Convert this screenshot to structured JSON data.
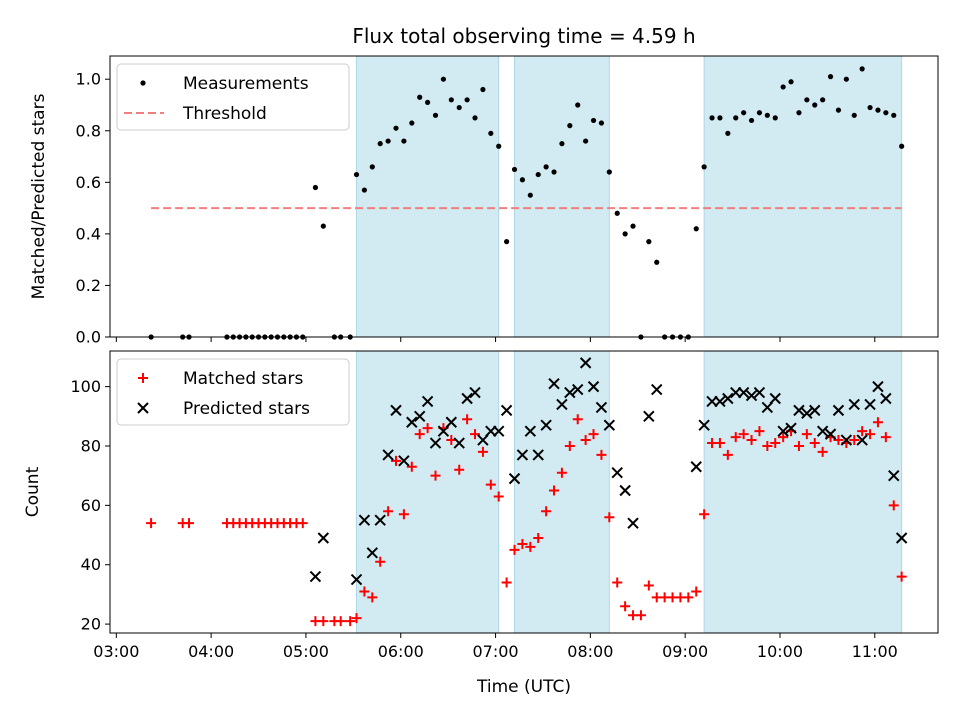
{
  "chart_data": [
    {
      "type": "scatter",
      "title": "Flux total observing time = 4.59 h",
      "xlabel": "",
      "ylabel": "Matched/Predicted stars",
      "ylim": [
        0,
        1.09
      ],
      "xlim": [
        "02:56",
        "11:40"
      ],
      "y_ticks": [
        "0.0",
        "0.2",
        "0.4",
        "0.6",
        "0.8",
        "1.0"
      ],
      "legend_placement": "top-left",
      "grid": false,
      "shaded_intervals": [
        [
          "05:32",
          "07:02"
        ],
        [
          "07:12",
          "08:12"
        ],
        [
          "09:12",
          "11:17"
        ]
      ],
      "shade_color": "#add8e6",
      "series": [
        {
          "name": "Measurements",
          "marker": "dot",
          "color": "#000000",
          "points": [
            [
              "03:22",
              0.0
            ],
            [
              "03:42",
              0.0
            ],
            [
              "03:46",
              0.0
            ],
            [
              "04:10",
              0.0
            ],
            [
              "04:14",
              0.0
            ],
            [
              "04:18",
              0.0
            ],
            [
              "04:22",
              0.0
            ],
            [
              "04:26",
              0.0
            ],
            [
              "04:30",
              0.0
            ],
            [
              "04:34",
              0.0
            ],
            [
              "04:38",
              0.0
            ],
            [
              "04:42",
              0.0
            ],
            [
              "04:46",
              0.0
            ],
            [
              "04:50",
              0.0
            ],
            [
              "04:54",
              0.0
            ],
            [
              "04:58",
              0.0
            ],
            [
              "05:06",
              0.58
            ],
            [
              "05:11",
              0.43
            ],
            [
              "05:18",
              0.0
            ],
            [
              "05:22",
              0.0
            ],
            [
              "05:28",
              0.0
            ],
            [
              "05:32",
              0.63
            ],
            [
              "05:37",
              0.57
            ],
            [
              "05:42",
              0.66
            ],
            [
              "05:47",
              0.75
            ],
            [
              "05:52",
              0.76
            ],
            [
              "05:57",
              0.81
            ],
            [
              "06:02",
              0.76
            ],
            [
              "06:07",
              0.83
            ],
            [
              "06:12",
              0.93
            ],
            [
              "06:17",
              0.91
            ],
            [
              "06:22",
              0.86
            ],
            [
              "06:27",
              1.0
            ],
            [
              "06:32",
              0.92
            ],
            [
              "06:37",
              0.89
            ],
            [
              "06:42",
              0.92
            ],
            [
              "06:47",
              0.85
            ],
            [
              "06:52",
              0.96
            ],
            [
              "06:57",
              0.79
            ],
            [
              "07:02",
              0.74
            ],
            [
              "07:07",
              0.37
            ],
            [
              "07:12",
              0.65
            ],
            [
              "07:17",
              0.61
            ],
            [
              "07:22",
              0.55
            ],
            [
              "07:27",
              0.63
            ],
            [
              "07:32",
              0.66
            ],
            [
              "07:37",
              0.64
            ],
            [
              "07:42",
              0.75
            ],
            [
              "07:47",
              0.82
            ],
            [
              "07:52",
              0.9
            ],
            [
              "07:57",
              0.76
            ],
            [
              "08:02",
              0.84
            ],
            [
              "08:07",
              0.83
            ],
            [
              "08:12",
              0.64
            ],
            [
              "08:17",
              0.48
            ],
            [
              "08:22",
              0.4
            ],
            [
              "08:27",
              0.43
            ],
            [
              "08:32",
              0.0
            ],
            [
              "08:37",
              0.37
            ],
            [
              "08:42",
              0.29
            ],
            [
              "08:47",
              0.0
            ],
            [
              "08:52",
              0.0
            ],
            [
              "08:57",
              0.0
            ],
            [
              "09:02",
              0.0
            ],
            [
              "09:07",
              0.42
            ],
            [
              "09:12",
              0.66
            ],
            [
              "09:17",
              0.85
            ],
            [
              "09:22",
              0.85
            ],
            [
              "09:27",
              0.79
            ],
            [
              "09:32",
              0.85
            ],
            [
              "09:37",
              0.87
            ],
            [
              "09:42",
              0.84
            ],
            [
              "09:47",
              0.87
            ],
            [
              "09:52",
              0.86
            ],
            [
              "09:57",
              0.85
            ],
            [
              "10:02",
              0.97
            ],
            [
              "10:07",
              0.99
            ],
            [
              "10:12",
              0.87
            ],
            [
              "10:17",
              0.92
            ],
            [
              "10:22",
              0.9
            ],
            [
              "10:27",
              0.92
            ],
            [
              "10:32",
              1.01
            ],
            [
              "10:37",
              0.88
            ],
            [
              "10:42",
              1.0
            ],
            [
              "10:47",
              0.86
            ],
            [
              "10:52",
              1.04
            ],
            [
              "10:57",
              0.89
            ],
            [
              "11:02",
              0.88
            ],
            [
              "11:07",
              0.87
            ],
            [
              "11:12",
              0.86
            ],
            [
              "11:17",
              0.74
            ]
          ]
        },
        {
          "name": "Threshold",
          "marker": "dashed-line",
          "color": "#f08080",
          "points": [
            [
              "03:22",
              0.5
            ],
            [
              "11:17",
              0.5
            ]
          ]
        }
      ]
    },
    {
      "type": "scatter",
      "title": "",
      "xlabel": "Time (UTC)",
      "ylabel": "Count",
      "ylim": [
        17,
        112
      ],
      "xlim": [
        "02:56",
        "11:40"
      ],
      "x_ticks": [
        "03:00",
        "04:00",
        "05:00",
        "06:00",
        "07:00",
        "08:00",
        "09:00",
        "10:00",
        "11:00"
      ],
      "y_ticks": [
        "20",
        "40",
        "60",
        "80",
        "100"
      ],
      "legend_placement": "top-left",
      "grid": false,
      "shaded_intervals": [
        [
          "05:32",
          "07:02"
        ],
        [
          "07:12",
          "08:12"
        ],
        [
          "09:12",
          "11:17"
        ]
      ],
      "shade_color": "#add8e6",
      "series": [
        {
          "name": "Matched stars",
          "marker": "plus",
          "color": "#ff0000",
          "points": [
            [
              "03:22",
              54
            ],
            [
              "03:42",
              54
            ],
            [
              "03:46",
              54
            ],
            [
              "04:10",
              54
            ],
            [
              "04:14",
              54
            ],
            [
              "04:18",
              54
            ],
            [
              "04:22",
              54
            ],
            [
              "04:26",
              54
            ],
            [
              "04:30",
              54
            ],
            [
              "04:34",
              54
            ],
            [
              "04:38",
              54
            ],
            [
              "04:42",
              54
            ],
            [
              "04:46",
              54
            ],
            [
              "04:50",
              54
            ],
            [
              "04:54",
              54
            ],
            [
              "04:58",
              54
            ],
            [
              "05:06",
              21
            ],
            [
              "05:11",
              21
            ],
            [
              "05:18",
              21
            ],
            [
              "05:22",
              21
            ],
            [
              "05:28",
              21
            ],
            [
              "05:32",
              22
            ],
            [
              "05:37",
              31
            ],
            [
              "05:42",
              29
            ],
            [
              "05:47",
              41
            ],
            [
              "05:52",
              58
            ],
            [
              "05:57",
              75
            ],
            [
              "06:02",
              57
            ],
            [
              "06:07",
              73
            ],
            [
              "06:12",
              84
            ],
            [
              "06:17",
              86
            ],
            [
              "06:22",
              70
            ],
            [
              "06:27",
              86
            ],
            [
              "06:32",
              82
            ],
            [
              "06:37",
              72
            ],
            [
              "06:42",
              89
            ],
            [
              "06:47",
              84
            ],
            [
              "06:52",
              78
            ],
            [
              "06:57",
              67
            ],
            [
              "07:02",
              63
            ],
            [
              "07:07",
              34
            ],
            [
              "07:12",
              45
            ],
            [
              "07:17",
              47
            ],
            [
              "07:22",
              46
            ],
            [
              "07:27",
              49
            ],
            [
              "07:32",
              58
            ],
            [
              "07:37",
              65
            ],
            [
              "07:42",
              71
            ],
            [
              "07:47",
              80
            ],
            [
              "07:52",
              89
            ],
            [
              "07:57",
              82
            ],
            [
              "08:02",
              84
            ],
            [
              "08:07",
              77
            ],
            [
              "08:12",
              56
            ],
            [
              "08:17",
              34
            ],
            [
              "08:22",
              26
            ],
            [
              "08:27",
              23
            ],
            [
              "08:32",
              23
            ],
            [
              "08:37",
              33
            ],
            [
              "08:42",
              29
            ],
            [
              "08:47",
              29
            ],
            [
              "08:52",
              29
            ],
            [
              "08:57",
              29
            ],
            [
              "09:02",
              29
            ],
            [
              "09:07",
              31
            ],
            [
              "09:12",
              57
            ],
            [
              "09:17",
              81
            ],
            [
              "09:22",
              81
            ],
            [
              "09:27",
              77
            ],
            [
              "09:32",
              83
            ],
            [
              "09:37",
              84
            ],
            [
              "09:42",
              82
            ],
            [
              "09:47",
              85
            ],
            [
              "09:52",
              80
            ],
            [
              "09:57",
              81
            ],
            [
              "10:02",
              83
            ],
            [
              "10:07",
              85
            ],
            [
              "10:12",
              80
            ],
            [
              "10:17",
              84
            ],
            [
              "10:22",
              81
            ],
            [
              "10:27",
              78
            ],
            [
              "10:32",
              83
            ],
            [
              "10:37",
              82
            ],
            [
              "10:42",
              81
            ],
            [
              "10:47",
              82
            ],
            [
              "10:52",
              85
            ],
            [
              "10:57",
              84
            ],
            [
              "11:02",
              88
            ],
            [
              "11:07",
              83
            ],
            [
              "11:12",
              60
            ],
            [
              "11:17",
              36
            ]
          ]
        },
        {
          "name": "Predicted stars",
          "marker": "x",
          "color": "#000000",
          "points": [
            [
              "05:06",
              36
            ],
            [
              "05:11",
              49
            ],
            [
              "05:32",
              35
            ],
            [
              "05:37",
              55
            ],
            [
              "05:42",
              44
            ],
            [
              "05:47",
              55
            ],
            [
              "05:52",
              77
            ],
            [
              "05:57",
              92
            ],
            [
              "06:02",
              75
            ],
            [
              "06:07",
              88
            ],
            [
              "06:12",
              90
            ],
            [
              "06:17",
              95
            ],
            [
              "06:22",
              81
            ],
            [
              "06:27",
              85
            ],
            [
              "06:32",
              88
            ],
            [
              "06:37",
              81
            ],
            [
              "06:42",
              96
            ],
            [
              "06:47",
              98
            ],
            [
              "06:52",
              82
            ],
            [
              "06:57",
              85
            ],
            [
              "07:02",
              85
            ],
            [
              "07:07",
              92
            ],
            [
              "07:12",
              69
            ],
            [
              "07:17",
              77
            ],
            [
              "07:22",
              85
            ],
            [
              "07:27",
              77
            ],
            [
              "07:32",
              87
            ],
            [
              "07:37",
              101
            ],
            [
              "07:42",
              94
            ],
            [
              "07:47",
              98
            ],
            [
              "07:52",
              99
            ],
            [
              "07:57",
              108
            ],
            [
              "08:02",
              100
            ],
            [
              "08:07",
              93
            ],
            [
              "08:12",
              87
            ],
            [
              "08:17",
              71
            ],
            [
              "08:22",
              65
            ],
            [
              "08:27",
              54
            ],
            [
              "08:37",
              90
            ],
            [
              "08:42",
              99
            ],
            [
              "09:07",
              73
            ],
            [
              "09:12",
              87
            ],
            [
              "09:17",
              95
            ],
            [
              "09:22",
              95
            ],
            [
              "09:27",
              96
            ],
            [
              "09:32",
              98
            ],
            [
              "09:37",
              98
            ],
            [
              "09:42",
              97
            ],
            [
              "09:47",
              98
            ],
            [
              "09:52",
              93
            ],
            [
              "09:57",
              96
            ],
            [
              "10:02",
              85
            ],
            [
              "10:07",
              86
            ],
            [
              "10:12",
              92
            ],
            [
              "10:17",
              91
            ],
            [
              "10:22",
              92
            ],
            [
              "10:27",
              85
            ],
            [
              "10:32",
              84
            ],
            [
              "10:37",
              92
            ],
            [
              "10:42",
              82
            ],
            [
              "10:47",
              94
            ],
            [
              "10:52",
              82
            ],
            [
              "10:57",
              94
            ],
            [
              "11:02",
              100
            ],
            [
              "11:07",
              96
            ],
            [
              "11:12",
              70
            ],
            [
              "11:17",
              49
            ]
          ]
        }
      ]
    }
  ]
}
